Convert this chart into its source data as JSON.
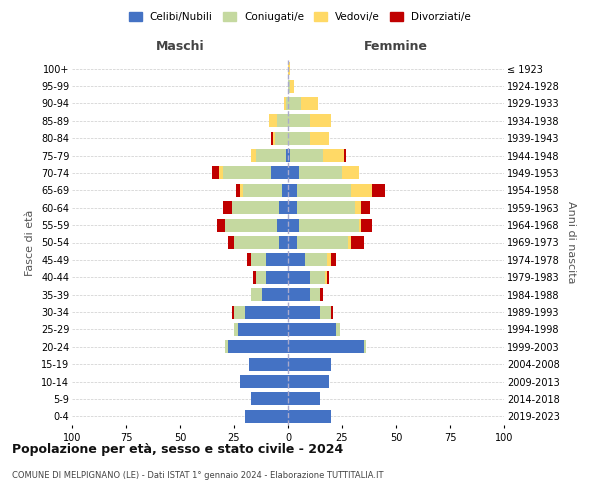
{
  "age_groups": [
    "0-4",
    "5-9",
    "10-14",
    "15-19",
    "20-24",
    "25-29",
    "30-34",
    "35-39",
    "40-44",
    "45-49",
    "50-54",
    "55-59",
    "60-64",
    "65-69",
    "70-74",
    "75-79",
    "80-84",
    "85-89",
    "90-94",
    "95-99",
    "100+"
  ],
  "birth_years": [
    "2019-2023",
    "2014-2018",
    "2009-2013",
    "2004-2008",
    "1999-2003",
    "1994-1998",
    "1989-1993",
    "1984-1988",
    "1979-1983",
    "1974-1978",
    "1969-1973",
    "1964-1968",
    "1959-1963",
    "1954-1958",
    "1949-1953",
    "1944-1948",
    "1939-1943",
    "1934-1938",
    "1929-1933",
    "1924-1928",
    "≤ 1923"
  ],
  "colors": {
    "celibi": "#4472c4",
    "coniugati": "#c5d9a0",
    "vedovi": "#ffd966",
    "divorziati": "#c00000"
  },
  "maschi": {
    "celibi": [
      20,
      17,
      22,
      18,
      28,
      23,
      20,
      12,
      10,
      10,
      4,
      5,
      4,
      3,
      8,
      1,
      0,
      0,
      0,
      0,
      0
    ],
    "coniugati": [
      0,
      0,
      0,
      0,
      1,
      2,
      5,
      5,
      5,
      7,
      21,
      24,
      22,
      18,
      22,
      14,
      6,
      5,
      1,
      0,
      0
    ],
    "vedovi": [
      0,
      0,
      0,
      0,
      0,
      0,
      0,
      0,
      0,
      0,
      0,
      0,
      0,
      1,
      2,
      2,
      1,
      4,
      1,
      0,
      0
    ],
    "divorziati": [
      0,
      0,
      0,
      0,
      0,
      0,
      1,
      0,
      1,
      2,
      3,
      4,
      4,
      2,
      3,
      0,
      1,
      0,
      0,
      0,
      0
    ]
  },
  "femmine": {
    "celibi": [
      20,
      15,
      19,
      20,
      35,
      22,
      15,
      10,
      10,
      8,
      4,
      5,
      4,
      4,
      5,
      1,
      0,
      0,
      0,
      0,
      0
    ],
    "coniugati": [
      0,
      0,
      0,
      0,
      1,
      2,
      5,
      5,
      7,
      10,
      24,
      28,
      27,
      25,
      20,
      15,
      10,
      10,
      6,
      1,
      0
    ],
    "vedovi": [
      0,
      0,
      0,
      0,
      0,
      0,
      0,
      0,
      1,
      2,
      1,
      1,
      3,
      10,
      8,
      10,
      9,
      10,
      8,
      2,
      1
    ],
    "divorziati": [
      0,
      0,
      0,
      0,
      0,
      0,
      1,
      1,
      1,
      2,
      6,
      5,
      4,
      6,
      0,
      1,
      0,
      0,
      0,
      0,
      0
    ]
  },
  "xlim": 100,
  "title": "Popolazione per età, sesso e stato civile - 2024",
  "subtitle": "COMUNE DI MELPIGNANO (LE) - Dati ISTAT 1° gennaio 2024 - Elaborazione TUTTITALIA.IT",
  "ylabel_left": "Fasce di età",
  "ylabel_right": "Anni di nascita",
  "label_maschi": "Maschi",
  "label_femmine": "Femmine",
  "legend_labels": [
    "Celibi/Nubili",
    "Coniugati/e",
    "Vedovi/e",
    "Divorziati/e"
  ],
  "bg_color": "#ffffff",
  "grid_color": "#cccccc",
  "xticks": [
    100,
    75,
    50,
    25,
    0,
    25,
    50,
    75,
    100
  ],
  "xtick_labels": [
    "100",
    "75",
    "50",
    "25",
    "0",
    "25",
    "50",
    "75",
    "100"
  ]
}
